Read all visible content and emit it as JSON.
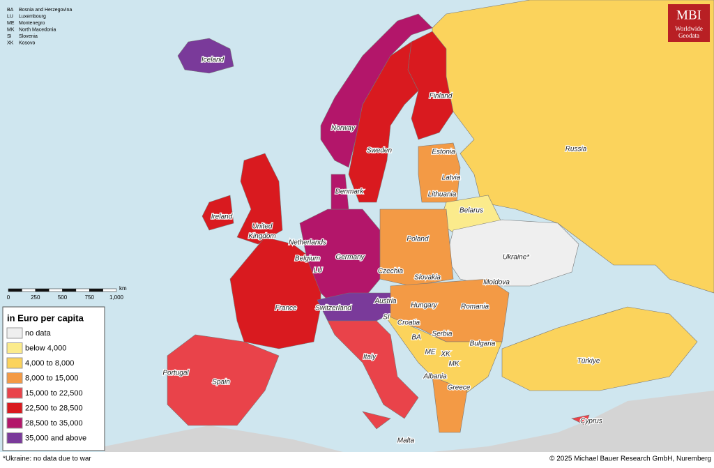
{
  "abbreviations": [
    {
      "code": "BA",
      "name": "Bosnia and Herzegovina"
    },
    {
      "code": "LU",
      "name": "Luxembourg"
    },
    {
      "code": "ME",
      "name": "Montenegro"
    },
    {
      "code": "MK",
      "name": "North Macedonia"
    },
    {
      "code": "SI",
      "name": "Slovenia"
    },
    {
      "code": "XK",
      "name": "Kosovo"
    }
  ],
  "logo": {
    "title": "MBI",
    "subtitle": [
      "Worldwide",
      "Geodata"
    ]
  },
  "scale": {
    "unit": "km",
    "ticks": [
      "0",
      "250",
      "500",
      "750",
      "1,000"
    ]
  },
  "legend": {
    "title": "in Euro per capita",
    "items": [
      {
        "label": "no data",
        "color": "#efefef"
      },
      {
        "label": "below 4,000",
        "color": "#fbeb8c"
      },
      {
        "label": "4,000 to 8,000",
        "color": "#fbd35c"
      },
      {
        "label": "8,000 to 15,000",
        "color": "#f39a45"
      },
      {
        "label": "15,000 to 22,500",
        "color": "#e9434a"
      },
      {
        "label": "22,500 to 28,500",
        "color": "#d91a1f"
      },
      {
        "label": "28,500 to 35,000",
        "color": "#b3166a"
      },
      {
        "label": "35,000 and above",
        "color": "#7a3a9a"
      }
    ]
  },
  "labels": [
    "Iceland",
    "Norway",
    "Sweden",
    "Finland",
    "Russia",
    "Estonia",
    "Latvia",
    "Lithuania",
    "Denmark",
    "Belarus",
    "Ireland",
    "United",
    "Kingdom",
    "Netherlands",
    "Belgium",
    "LU",
    "Germany",
    "Poland",
    "Czechia",
    "Slovakia",
    "Ukraine*",
    "Moldova",
    "France",
    "Switzerland",
    "Austria",
    "Hungary",
    "Romania",
    "SI",
    "Croatia",
    "Serbia",
    "BA",
    "ME",
    "XK",
    "Bulgaria",
    "MK",
    "Albania",
    "Greece",
    "Türkiye",
    "Italy",
    "Portugal",
    "Spain",
    "Cyprus",
    "Malta"
  ],
  "footnote": "*Ukraine: no data due to war",
  "copyright": "© 2025 Michael Bauer Research GmbH, Nuremberg"
}
